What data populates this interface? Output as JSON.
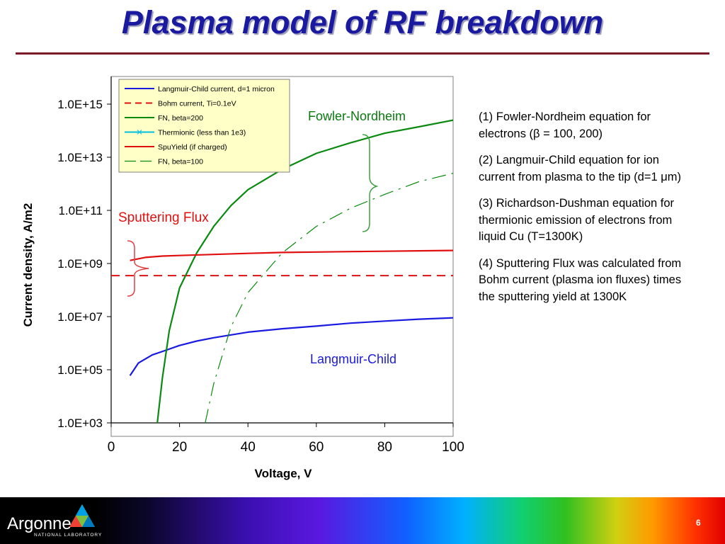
{
  "slide": {
    "title": "Plasma model of RF breakdown",
    "page_number": "6",
    "logo_text": "Argonne",
    "logo_subtext": "NATIONAL LABORATORY",
    "notes": [
      "(1) Fowler-Nordheim equation for electrons (β = 100, 200)",
      "(2) Langmuir-Child equation for ion current from plasma to the tip (d=1 μm)",
      "(3) Richardson-Dushman equation for thermionic emission of electrons from liquid Cu (T=1300K)",
      "(4) Sputtering Flux was calculated from Bohm current (plasma ion fluxes) times the sputtering yield at 1300K"
    ]
  },
  "chart_data": {
    "type": "line",
    "xlabel": "Voltage, V",
    "ylabel": "Current density, A/m2",
    "xlim": [
      0,
      100
    ],
    "ylim": [
      1000,
      1e+16
    ],
    "yscale": "log",
    "x_ticks": [
      "0",
      "20",
      "40",
      "60",
      "80",
      "100"
    ],
    "y_ticks": [
      "1.0E+03",
      "1.0E+05",
      "1.0E+07",
      "1.0E+09",
      "1.0E+11",
      "1.0E+13",
      "1.0E+15"
    ],
    "grid": false,
    "legend_position": "top-left",
    "annotations": [
      "Fowler-Nordheim",
      "Sputtering Flux",
      "Langmuir-Child"
    ],
    "annotation_colors": [
      "#0a7a10",
      "#e01010",
      "#1a1ae0"
    ],
    "series": [
      {
        "name": "Langmuir-Child current, d=1 micron",
        "color": "#1a1ae0",
        "style": "solid",
        "x": [
          5.5,
          8,
          12,
          16,
          20,
          25,
          30,
          40,
          50,
          60,
          70,
          80,
          90,
          100
        ],
        "y": [
          60000.0,
          180000.0,
          360000.0,
          540000.0,
          820000.0,
          1200000.0,
          1600000.0,
          2600000.0,
          3500000.0,
          4400000.0,
          5700000.0,
          6800000.0,
          8000000.0,
          9000000.0
        ]
      },
      {
        "name": "Bohm current, Ti=0.1eV",
        "color": "#e01010",
        "style": "dashed",
        "x": [
          0,
          100
        ],
        "y": [
          350000000.0,
          350000000.0
        ]
      },
      {
        "name": "FN, beta=200",
        "color": "#0a8a10",
        "style": "solid",
        "x": [
          13.5,
          15,
          17,
          20,
          25,
          30,
          35,
          40,
          50,
          60,
          70,
          80,
          90,
          100
        ],
        "y": [
          1000.0,
          50000.0,
          3000000.0,
          120000000.0,
          2500000000.0,
          25000000000.0,
          150000000000.0,
          600000000000.0,
          3500000000000.0,
          14000000000000.0,
          35000000000000.0,
          80000000000000.0,
          140000000000000.0,
          250000000000000.0
        ]
      },
      {
        "name": "Thermionic (less than 1e3)",
        "color": "#00c0e0",
        "style": "solid",
        "x": [],
        "y": []
      },
      {
        "name": "SpuYield (if charged)",
        "color": "#e01010",
        "style": "solid",
        "x": [
          5.5,
          10,
          15,
          20,
          30,
          40,
          50,
          60,
          70,
          80,
          90,
          100
        ],
        "y": [
          1300000000.0,
          1700000000.0,
          1900000000.0,
          2000000000.0,
          2200000000.0,
          2400000000.0,
          2600000000.0,
          2700000000.0,
          2800000000.0,
          2900000000.0,
          3000000000.0,
          3100000000.0
        ]
      },
      {
        "name": "FN, beta=100",
        "color": "#0a8a10",
        "style": "longdash",
        "x": [
          27.5,
          30,
          35,
          40,
          50,
          60,
          70,
          80,
          90,
          100
        ],
        "y": [
          1000.0,
          30000.0,
          4000000.0,
          80000000.0,
          2500000000.0,
          25000000000.0,
          120000000000.0,
          400000000000.0,
          1200000000000.0,
          2500000000000.0
        ]
      }
    ]
  }
}
